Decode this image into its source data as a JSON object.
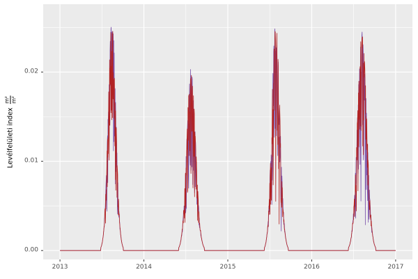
{
  "figure": {
    "background": "#ffffff",
    "panel_background": "#ebebeb",
    "grid_major_color": "#ffffff",
    "grid_minor_color": "#ffffff",
    "tick_mark_color": "#333333",
    "tick_label_color": "#4d4d4d",
    "axis_title_color": "#000000"
  },
  "chart_data": {
    "type": "line",
    "title": "",
    "xlabel": "",
    "ylabel": "Levélfelületi index m²/m²",
    "ylabel_parts": {
      "text": "Levélfelületi index",
      "frac_numerator": "m²",
      "frac_denominator": "m²"
    },
    "legend": "none",
    "grid": true,
    "xlim": [
      2012.8,
      2017.2
    ],
    "ylim": [
      -0.001,
      0.0276
    ],
    "x_ticks": [
      2013,
      2014,
      2015,
      2016,
      2017
    ],
    "x_tick_labels": [
      "2013",
      "2014",
      "2015",
      "2016",
      "2017"
    ],
    "x_minor_ticks": [
      2013.5,
      2014.5,
      2015.5,
      2016.5
    ],
    "y_ticks": [
      0,
      0.01,
      0.02
    ],
    "y_tick_labels": [
      "0.00",
      "0.01",
      "0.02"
    ],
    "y_minor_ticks": [
      0.005,
      0.015,
      0.025
    ],
    "baseline_value": 0,
    "series": [
      {
        "name": "purple-line",
        "color": "#7b52ab",
        "seed": 11
      },
      {
        "name": "red-line",
        "color": "#b22222",
        "seed": 83
      }
    ],
    "seasons": [
      {
        "year": 2013,
        "peak": 0.0262,
        "center": 0.62,
        "rise": 0.045,
        "fall": 0.045
      },
      {
        "year": 2014,
        "peak": 0.0205,
        "center": 0.56,
        "rise": 0.05,
        "fall": 0.055
      },
      {
        "year": 2015,
        "peak": 0.0256,
        "center": 0.57,
        "rise": 0.045,
        "fall": 0.05
      },
      {
        "year": 2016,
        "peak": 0.0245,
        "center": 0.6,
        "rise": 0.055,
        "fall": 0.055
      }
    ],
    "noise": {
      "drop_max": 0.62,
      "big_drop_prob": 0.07,
      "big_drop_extra": 0.25
    }
  }
}
